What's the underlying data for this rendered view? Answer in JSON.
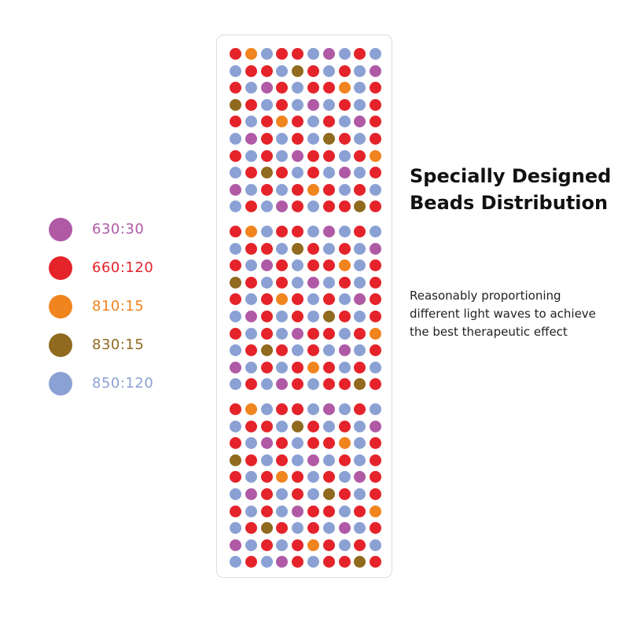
{
  "legend": {
    "items": [
      {
        "label": "630:30",
        "color": "#b05aa6",
        "text_color": "#b05aa6",
        "icon": "violet-circle"
      },
      {
        "label": "660:120",
        "color": "#e5232a",
        "text_color": "#e5232a",
        "icon": "red-circle"
      },
      {
        "label": "810:15",
        "color": "#f0841f",
        "text_color": "#f0841f",
        "icon": "orange-circle"
      },
      {
        "label": "830:15",
        "color": "#8f6a1f",
        "text_color": "#8f6a1f",
        "icon": "brown-circle"
      },
      {
        "label": "850:120",
        "color": "#8ba1d4",
        "text_color": "#8ba1d4",
        "icon": "blue-circle"
      }
    ]
  },
  "heading": {
    "line1": "Specially Designed",
    "line2": "Beads Distribution"
  },
  "description": {
    "line1": "Reasonably proportioning",
    "line2": "different light waves to achieve",
    "line3": "the best therapeutic effect"
  },
  "bead_colors": {
    "P": "#b05aa6",
    "R": "#e5232a",
    "O": "#f0841f",
    "B": "#8f6a1f",
    "L": "#8ba1d4"
  },
  "bead_panel": {
    "sections": 3,
    "pattern_rows": [
      "ROLRRLPLRL",
      "LRRLBRLRLP",
      "RLPRLRROLR",
      "BRLRLPLRLR",
      "RLRORLRLPR",
      "LPRLRLBRLR",
      "RLRLPRRLRO",
      "LRBRLRLPLR",
      "PLRLRORLRL",
      "LRLPRLRRBR"
    ]
  }
}
